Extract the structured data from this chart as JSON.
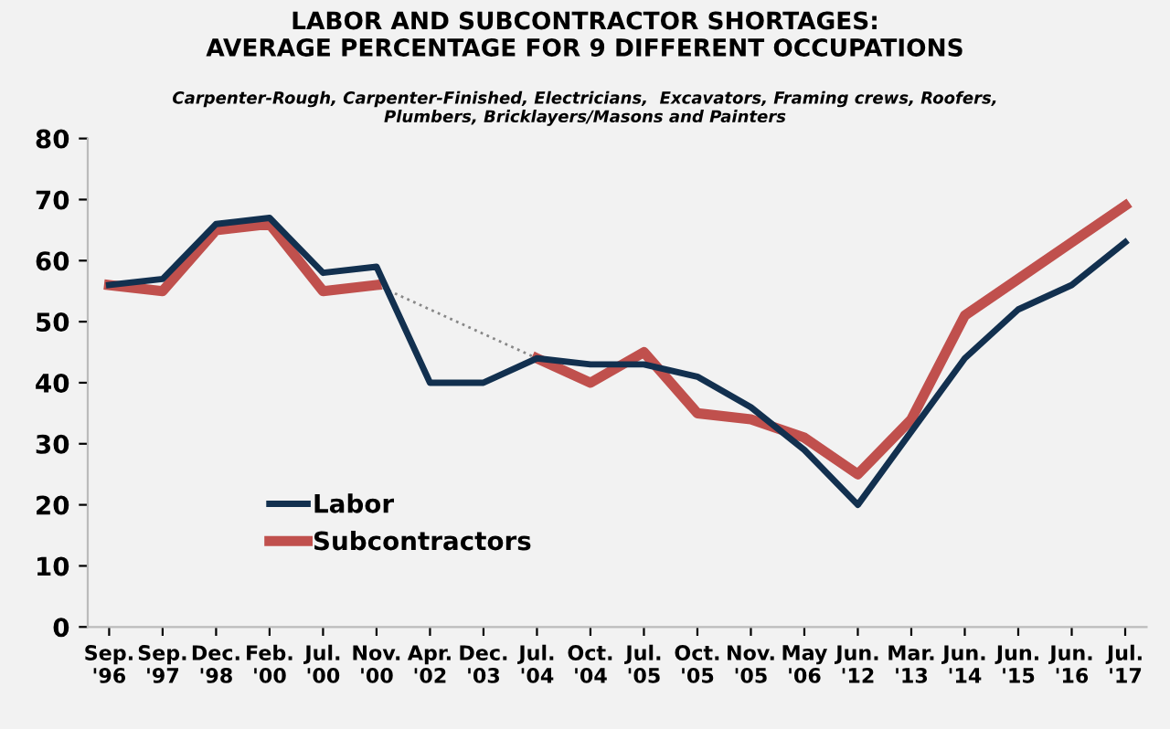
{
  "chart_data": {
    "type": "line",
    "title": "LABOR AND SUBCONTRACTOR SHORTAGES:\nAVERAGE PERCENTAGE FOR 9 DIFFERENT OCCUPATIONS",
    "subtitle": "Carpenter-Rough, Carpenter-Finished, Electricians,  Excavators, Framing crews, Roofers,\nPlumbers, Bricklayers/Masons and Painters",
    "categories": [
      "Sep.\n'96",
      "Sep.\n'97",
      "Dec.\n'98",
      "Feb.\n'00",
      "Jul.\n'00",
      "Nov.\n'00",
      "Apr.\n'02",
      "Dec.\n'03",
      "Jul.\n'04",
      "Oct.\n'04",
      "Jul.\n'05",
      "Oct.\n'05",
      "Nov.\n'05",
      "May\n'06",
      "Jun.\n'12",
      "Mar.\n'13",
      "Jun.\n'14",
      "Jun.\n'15",
      "Jun.\n'16",
      "Jul.\n'17"
    ],
    "series": [
      {
        "name": "Labor",
        "color": "#12304f",
        "values": [
          56,
          57,
          66,
          67,
          58,
          59,
          40,
          40,
          44,
          43,
          43,
          41,
          36,
          29,
          20,
          32,
          44,
          52,
          56,
          63
        ]
      },
      {
        "name": "Subcontractors",
        "color": "#c0504d",
        "values": [
          56,
          55,
          65,
          66,
          55,
          56,
          null,
          null,
          44,
          40,
          45,
          35,
          34,
          31,
          25,
          34,
          51,
          57,
          63,
          69
        ]
      },
      {
        "color": "#888888",
        "line_style": "dotted",
        "values": [
          null,
          null,
          null,
          null,
          null,
          56,
          null,
          null,
          44,
          null,
          null,
          null,
          null,
          null,
          null,
          null,
          null,
          null,
          null,
          null
        ]
      }
    ],
    "ylim": [
      0,
      80
    ],
    "yticks": [
      0,
      10,
      20,
      30,
      40,
      50,
      60,
      70,
      80
    ],
    "grid": false,
    "legend": "bottom left"
  }
}
